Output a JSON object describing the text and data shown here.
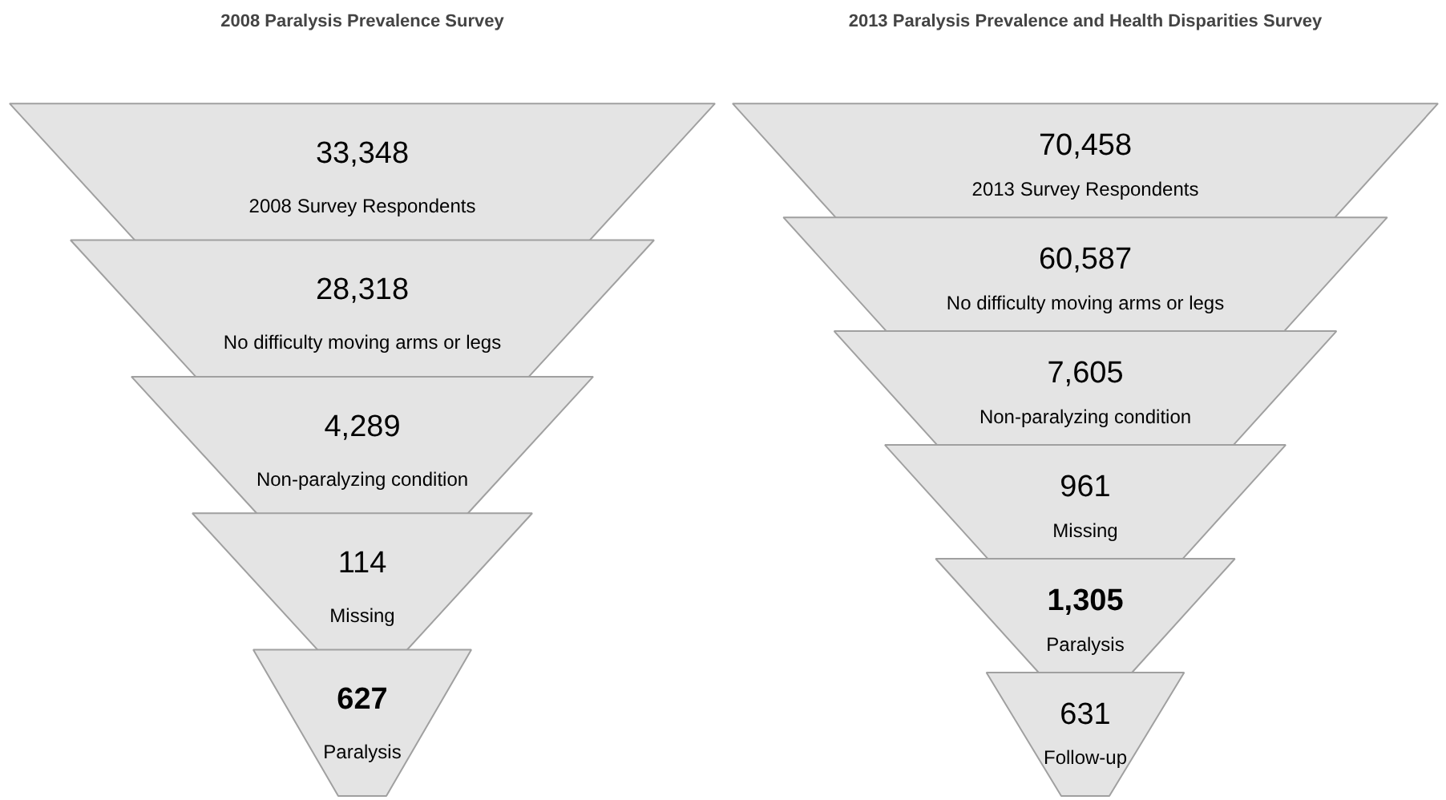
{
  "chart_data": [
    {
      "type": "other",
      "title": "2008 Paralysis Prevalence Survey",
      "categories": [
        "2008 Survey Respondents",
        "No difficulty moving arms or legs",
        "Non-paralyzing condition",
        "Missing",
        "Paralysis"
      ],
      "values": [
        33348,
        28318,
        4289,
        114,
        627
      ],
      "value_labels": [
        "33,348",
        "28,318",
        "4,289",
        "114",
        "627"
      ]
    },
    {
      "type": "other",
      "title": "2013 Paralysis Prevalence and Health Disparities Survey",
      "categories": [
        "2013 Survey Respondents",
        "No difficulty moving arms or legs",
        "Non-paralyzing condition",
        "Missing",
        "Paralysis",
        "Follow-up"
      ],
      "values": [
        70458,
        60587,
        7605,
        961,
        1305,
        631
      ],
      "value_labels": [
        "70,458",
        "60,587",
        "7,605",
        "961",
        "1,305",
        "631"
      ]
    }
  ]
}
